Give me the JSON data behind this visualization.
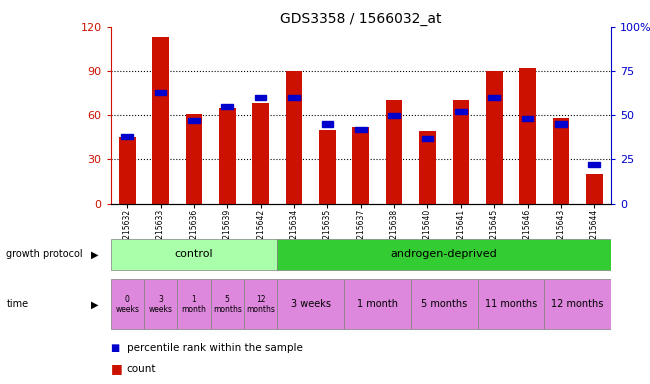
{
  "title": "GDS3358 / 1566032_at",
  "samples": [
    "GSM215632",
    "GSM215633",
    "GSM215636",
    "GSM215639",
    "GSM215642",
    "GSM215634",
    "GSM215635",
    "GSM215637",
    "GSM215638",
    "GSM215640",
    "GSM215641",
    "GSM215645",
    "GSM215646",
    "GSM215643",
    "GSM215644"
  ],
  "count_values": [
    45,
    113,
    61,
    65,
    68,
    90,
    50,
    52,
    70,
    49,
    70,
    90,
    92,
    58,
    20
  ],
  "percentile_values": [
    38,
    63,
    47,
    55,
    60,
    60,
    45,
    42,
    50,
    37,
    52,
    60,
    48,
    45,
    22
  ],
  "bar_color": "#cc1100",
  "percentile_color": "#0000cc",
  "ylim_left": [
    0,
    120
  ],
  "ylim_right": [
    0,
    100
  ],
  "left_yticks": [
    0,
    30,
    60,
    90,
    120
  ],
  "right_yticks": [
    0,
    25,
    50,
    75,
    100
  ],
  "right_yticklabels": [
    "0",
    "25",
    "50",
    "75",
    "100%"
  ],
  "control_color": "#aaffaa",
  "androgen_color": "#33cc33",
  "time_color": "#dd88dd",
  "time_labels_control": [
    "0\nweeks",
    "3\nweeks",
    "1\nmonth",
    "5\nmonths",
    "12\nmonths"
  ],
  "time_labels_androgen": [
    "3 weeks",
    "1 month",
    "5 months",
    "11 months",
    "12 months"
  ],
  "growth_protocol_label": "growth protocol",
  "time_label": "time",
  "legend_count": "count",
  "legend_percentile": "percentile rank within the sample"
}
